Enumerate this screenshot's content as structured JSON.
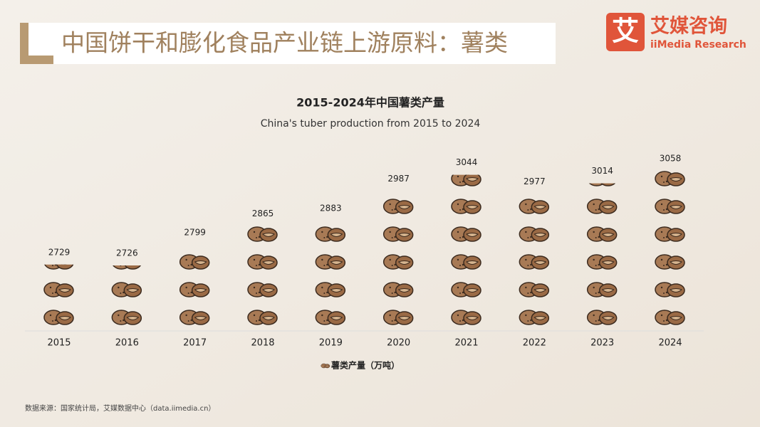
{
  "header": {
    "title": "中国饼干和膨化食品产业链上游原料：薯类",
    "logo_mark": "艾",
    "logo_name": "艾媒咨询",
    "logo_en": "iiMedia Research"
  },
  "chart_data": {
    "type": "pictorial-bar",
    "title": "2015-2024年中国薯类产量",
    "subtitle": "China's tuber production from 2015 to 2024",
    "categories": [
      "2015",
      "2016",
      "2017",
      "2018",
      "2019",
      "2020",
      "2021",
      "2022",
      "2023",
      "2024"
    ],
    "series": [
      {
        "name": "薯类产量（万吨）",
        "color": "#8b5a3c",
        "values": [
          2729,
          2726,
          2799,
          2865,
          2883,
          2987,
          3044,
          2977,
          3014,
          3058
        ]
      }
    ]
  },
  "source": "数据来源：国家统计局，艾媒数据中心（data.iimedia.cn）"
}
